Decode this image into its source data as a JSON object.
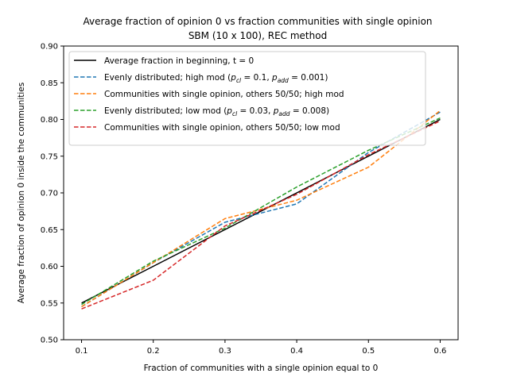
{
  "chart_data": {
    "type": "line",
    "title": "Average fraction of opinion 0 vs fraction communities with single opinion",
    "subtitle": "SBM (10 x 100), REC method",
    "xlabel": "Fraction of communities with a single opinion equal to 0",
    "ylabel": "Average fraction of opinion 0 inside the communities",
    "xlim": [
      0.075,
      0.625
    ],
    "ylim": [
      0.5,
      0.9
    ],
    "xticks": [
      0.1,
      0.2,
      0.3,
      0.4,
      0.5,
      0.6
    ],
    "yticks": [
      0.5,
      0.55,
      0.6,
      0.65,
      0.7,
      0.75,
      0.8,
      0.85,
      0.9
    ],
    "xtick_labels": [
      "0.1",
      "0.2",
      "0.3",
      "0.4",
      "0.5",
      "0.6"
    ],
    "ytick_labels": [
      "0.50",
      "0.55",
      "0.60",
      "0.65",
      "0.70",
      "0.75",
      "0.80",
      "0.85",
      "0.90"
    ],
    "grid": false,
    "legend_position": "top-left",
    "x": [
      0.1,
      0.2,
      0.3,
      0.4,
      0.5,
      0.6
    ],
    "series": [
      {
        "name": "Average fraction in beginning, t = 0",
        "color": "#000000",
        "dash": "solid",
        "values": [
          0.55,
          0.6,
          0.65,
          0.7,
          0.75,
          0.8
        ]
      },
      {
        "name": "Evenly distributed; high mod (p_cl = 0.1, p_add = 0.001)",
        "color": "#1f77b4",
        "dash": "dashed",
        "legend_parts": [
          "Evenly distributed; high mod (",
          "p",
          "cl",
          " = 0.1, ",
          "p",
          "add",
          " = 0.001)"
        ],
        "values": [
          0.545,
          0.605,
          0.66,
          0.685,
          0.755,
          0.81
        ]
      },
      {
        "name": "Communities with single opinion, others 50/50; high mod",
        "color": "#ff7f0e",
        "dash": "dashed",
        "values": [
          0.545,
          0.605,
          0.665,
          0.69,
          0.735,
          0.812
        ]
      },
      {
        "name": "Evenly distributed; low mod (p_cl = 0.03, p_add = 0.008)",
        "color": "#2ca02c",
        "dash": "dashed",
        "legend_parts": [
          "Evenly distributed; low mod (",
          "p",
          "cl",
          " = 0.03, ",
          "p",
          "add",
          " = 0.008)"
        ],
        "values": [
          0.548,
          0.607,
          0.652,
          0.708,
          0.758,
          0.802
        ]
      },
      {
        "name": "Communities with single opinion, others 50/50; low mod",
        "color": "#d62728",
        "dash": "dashed",
        "values": [
          0.542,
          0.581,
          0.655,
          0.698,
          0.752,
          0.798
        ]
      }
    ]
  }
}
